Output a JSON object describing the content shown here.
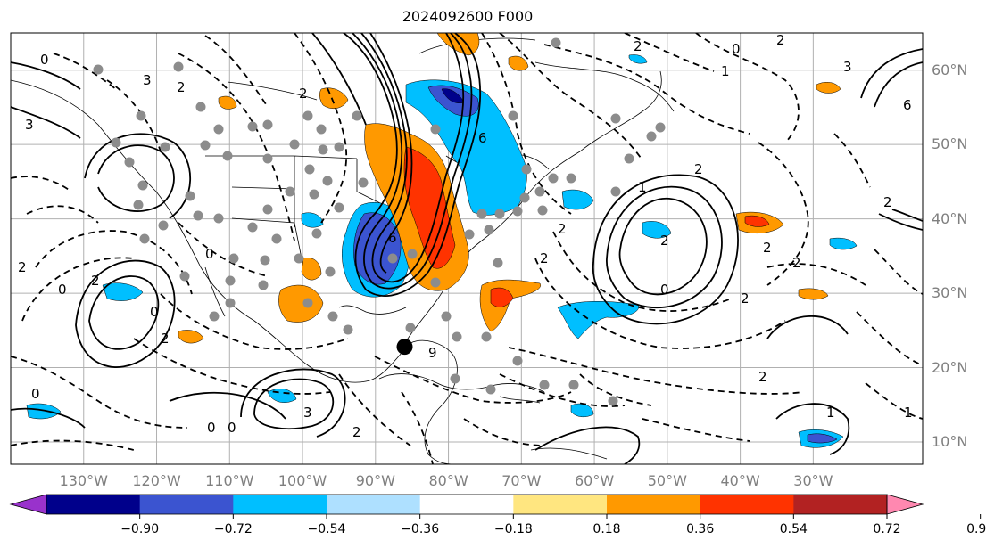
{
  "title": "2024092600 F000",
  "map": {
    "lon_range": [
      -140,
      -15
    ],
    "lat_range": [
      7,
      65
    ],
    "lat_labels": [
      {
        "lat": 60,
        "text": "60°N"
      },
      {
        "lat": 50,
        "text": "50°N"
      },
      {
        "lat": 40,
        "text": "40°N"
      },
      {
        "lat": 30,
        "text": "30°N"
      },
      {
        "lat": 20,
        "text": "20°N"
      },
      {
        "lat": 10,
        "text": "10°N"
      }
    ],
    "lon_labels": [
      {
        "lon": -130,
        "text": "130°W"
      },
      {
        "lon": -120,
        "text": "120°W"
      },
      {
        "lon": -110,
        "text": "110°W"
      },
      {
        "lon": -100,
        "text": "100°W"
      },
      {
        "lon": -90,
        "text": "90°W"
      },
      {
        "lon": -80,
        "text": "80°W"
      },
      {
        "lon": -70,
        "text": "70°W"
      },
      {
        "lon": -60,
        "text": "60°W"
      },
      {
        "lon": -50,
        "text": "50°W"
      },
      {
        "lon": -40,
        "text": "40°W"
      },
      {
        "lon": -30,
        "text": "30°W"
      }
    ],
    "storm_center": {
      "lon": -86.0,
      "lat": 22.8
    },
    "highlight_colors": {
      "positive": "#ff9900",
      "strong_positive": "#ff3300",
      "negative": "#00bfff",
      "strong_negative": "#3b54d0"
    }
  },
  "colorbar": {
    "colors": [
      "#9932cc",
      "#00008b",
      "#3b54d0",
      "#00bfff",
      "#aee0ff",
      "#ffffff",
      "#ffe680",
      "#ff9900",
      "#ff3300",
      "#b22222",
      "#ff88b0"
    ],
    "tick_labels": [
      "−0.90",
      "−0.72",
      "−0.54",
      "−0.36",
      "−0.18",
      "0.18",
      "0.36",
      "0.54",
      "0.72",
      "0.90"
    ]
  }
}
